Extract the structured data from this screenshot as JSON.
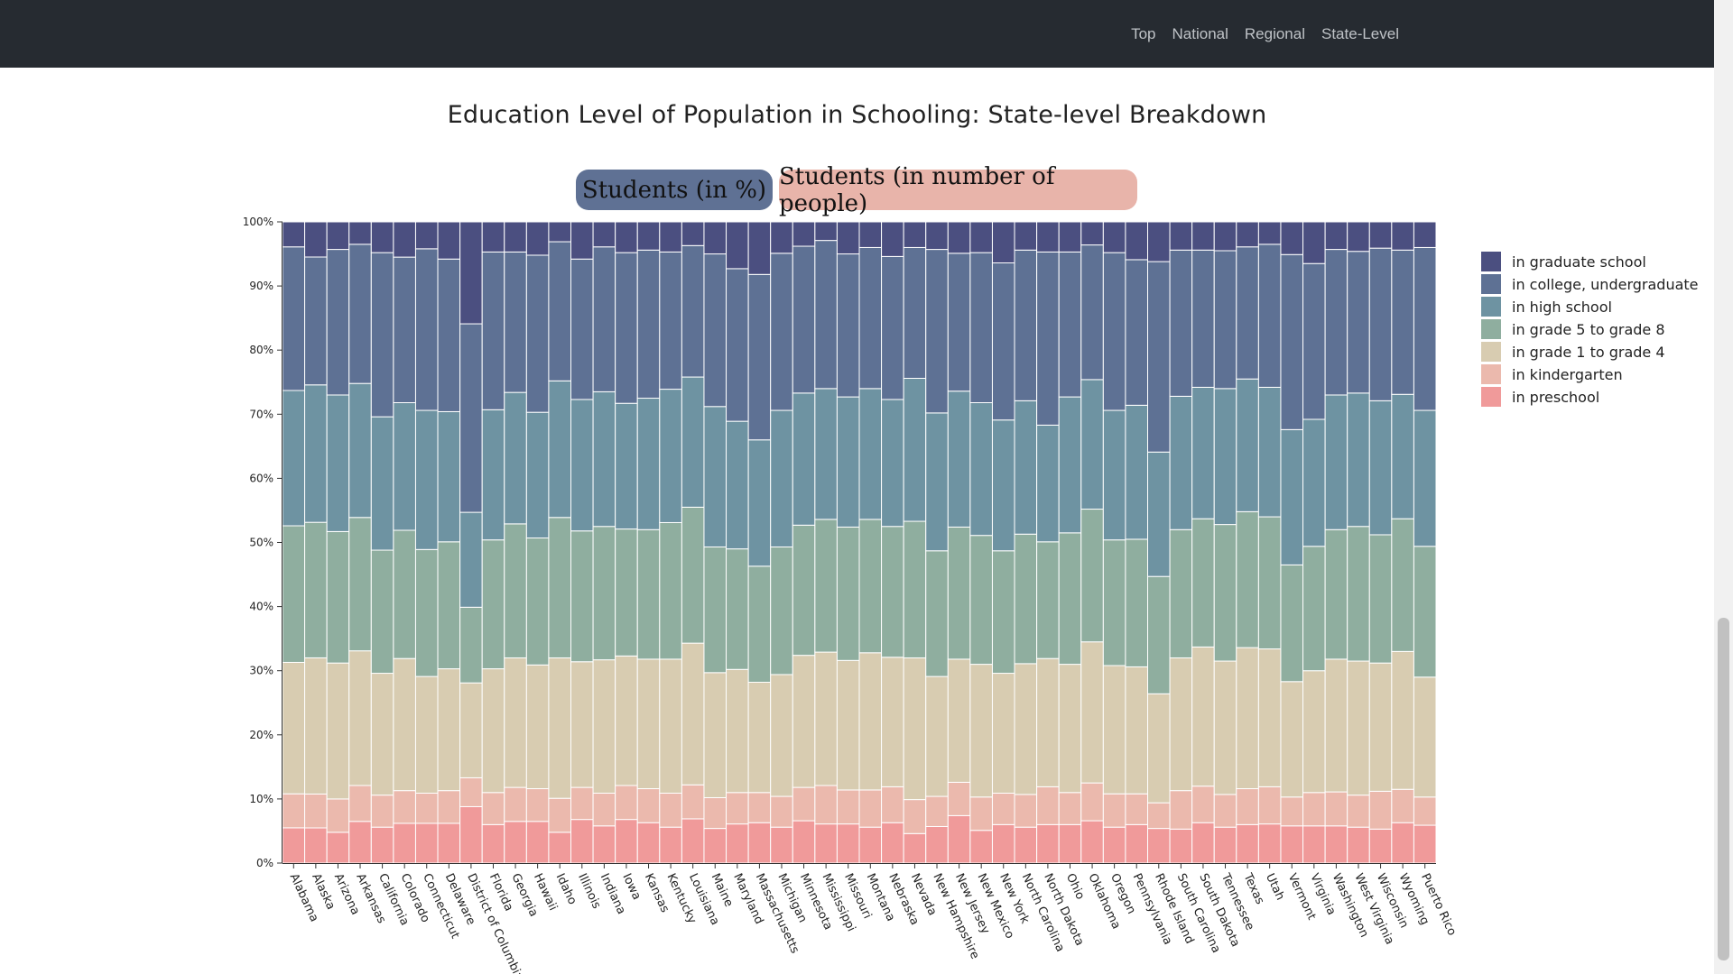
{
  "nav": {
    "links": [
      "Top",
      "National",
      "Regional",
      "State-Level"
    ]
  },
  "title": "Education Level of Population in Schooling: State-level Breakdown",
  "toggles": {
    "percent": "Students (in %)",
    "number": "Students (in number of people)"
  },
  "colors": {
    "navbar": "#262b31",
    "series": [
      "#f09a9a",
      "#ebb9ad",
      "#d8ccb1",
      "#8fae9f",
      "#6e93a2",
      "#5e7194",
      "#4b4f80"
    ]
  },
  "chart_data": {
    "type": "bar",
    "stacked": true,
    "normalized": true,
    "title": "Education Level of Population in Schooling: State-level Breakdown",
    "ylim": [
      0,
      100
    ],
    "yticks": [
      "0%",
      "10%",
      "20%",
      "30%",
      "40%",
      "50%",
      "60%",
      "70%",
      "80%",
      "90%",
      "100%"
    ],
    "legend_position": "right",
    "categories": [
      "Alabama",
      "Alaska",
      "Arizona",
      "Arkansas",
      "California",
      "Colorado",
      "Connecticut",
      "Delaware",
      "District of Columbia",
      "Florida",
      "Georgia",
      "Hawaii",
      "Idaho",
      "Illinois",
      "Indiana",
      "Iowa",
      "Kansas",
      "Kentucky",
      "Louisiana",
      "Maine",
      "Maryland",
      "Massachusetts",
      "Michigan",
      "Minnesota",
      "Mississippi",
      "Missouri",
      "Montana",
      "Nebraska",
      "Nevada",
      "New Hampshire",
      "New Jersey",
      "New Mexico",
      "New York",
      "North Carolina",
      "North Dakota",
      "Ohio",
      "Oklahoma",
      "Oregon",
      "Pennsylvania",
      "Rhode Island",
      "South Carolina",
      "South Dakota",
      "Tennessee",
      "Texas",
      "Utah",
      "Vermont",
      "Virginia",
      "Washington",
      "West Virginia",
      "Wisconsin",
      "Wyoming",
      "Puerto Rico"
    ],
    "series": [
      {
        "name": "in preschool",
        "values": [
          5.5,
          5.5,
          4.8,
          6.5,
          5.6,
          6.2,
          6.2,
          6.2,
          8.8,
          6.0,
          6.5,
          6.5,
          4.8,
          6.8,
          5.8,
          6.8,
          6.3,
          5.6,
          6.9,
          5.4,
          6.1,
          6.3,
          5.6,
          6.6,
          6.1,
          6.1,
          5.6,
          6.3,
          4.6,
          5.7,
          7.4,
          5.1,
          6.0,
          5.6,
          6.0,
          6.0,
          6.6,
          5.6,
          6.0,
          5.4,
          5.3,
          6.3,
          5.6,
          6.0,
          6.1,
          5.8,
          5.8,
          5.8,
          5.6,
          5.3,
          6.3,
          5.9
        ]
      },
      {
        "name": "in kindergarten",
        "values": [
          5.3,
          5.3,
          5.2,
          5.6,
          5.0,
          5.1,
          4.7,
          5.1,
          4.5,
          5.0,
          5.3,
          5.1,
          5.3,
          5.0,
          5.1,
          5.3,
          5.3,
          5.3,
          5.3,
          4.8,
          4.9,
          4.7,
          4.8,
          5.2,
          6.0,
          5.3,
          5.8,
          5.6,
          5.3,
          4.7,
          5.2,
          5.2,
          4.9,
          5.1,
          5.9,
          5.0,
          5.9,
          5.2,
          4.8,
          4.0,
          6.0,
          5.7,
          5.1,
          5.6,
          5.8,
          4.5,
          5.2,
          5.3,
          5.0,
          5.9,
          5.2,
          4.4
        ]
      },
      {
        "name": "in grade 1 to grade 4",
        "values": [
          20.5,
          21.3,
          21.2,
          21.0,
          19.0,
          20.6,
          18.2,
          19.0,
          14.8,
          19.3,
          20.2,
          19.3,
          21.9,
          19.6,
          20.8,
          20.2,
          20.2,
          20.9,
          22.1,
          19.5,
          19.2,
          17.2,
          19.0,
          20.6,
          20.8,
          20.2,
          21.4,
          20.2,
          22.1,
          18.7,
          19.2,
          20.7,
          18.7,
          20.4,
          20.0,
          20.0,
          22.0,
          20.0,
          19.8,
          17.0,
          20.7,
          21.7,
          20.8,
          22.0,
          21.5,
          18.0,
          19.0,
          20.7,
          20.9,
          20.0,
          21.5,
          18.7
        ]
      },
      {
        "name": "in grade 5 to grade 8",
        "values": [
          21.3,
          21.2,
          20.5,
          20.8,
          19.2,
          20.0,
          19.8,
          19.8,
          11.8,
          20.1,
          20.9,
          19.8,
          21.9,
          20.4,
          20.8,
          19.8,
          20.2,
          21.3,
          21.2,
          19.6,
          18.8,
          18.1,
          19.9,
          20.3,
          20.7,
          20.8,
          20.8,
          20.4,
          21.3,
          19.6,
          20.6,
          20.1,
          19.1,
          20.2,
          18.2,
          20.5,
          20.7,
          19.6,
          19.9,
          18.3,
          20.0,
          20.0,
          21.3,
          21.2,
          20.6,
          18.2,
          19.4,
          20.2,
          21.0,
          20.0,
          20.7,
          20.4
        ]
      },
      {
        "name": "in high school",
        "values": [
          21.1,
          21.5,
          21.3,
          20.9,
          20.8,
          19.9,
          21.7,
          20.3,
          14.8,
          20.3,
          20.5,
          19.6,
          21.3,
          20.5,
          21.0,
          19.6,
          20.5,
          20.8,
          20.3,
          21.9,
          19.9,
          19.7,
          21.3,
          20.6,
          20.4,
          20.3,
          20.4,
          19.8,
          22.3,
          21.5,
          21.2,
          20.7,
          20.4,
          20.8,
          18.2,
          21.2,
          20.2,
          20.2,
          20.9,
          19.4,
          20.8,
          20.5,
          21.2,
          20.7,
          20.2,
          21.1,
          19.8,
          21.0,
          20.8,
          20.9,
          19.4,
          21.2
        ]
      },
      {
        "name": "in college, undergraduate",
        "values": [
          22.4,
          20.0,
          22.7,
          21.7,
          25.6,
          22.7,
          25.2,
          23.8,
          29.4,
          24.6,
          21.9,
          24.5,
          21.7,
          21.9,
          22.6,
          23.5,
          23.1,
          21.4,
          20.5,
          23.8,
          23.8,
          25.8,
          24.5,
          22.9,
          23.1,
          22.3,
          22.0,
          22.3,
          20.4,
          25.5,
          21.5,
          23.4,
          24.5,
          23.5,
          27.0,
          22.6,
          21.0,
          24.6,
          22.7,
          29.7,
          22.8,
          21.4,
          21.5,
          20.6,
          22.3,
          27.3,
          24.3,
          22.7,
          22.1,
          23.8,
          22.5,
          25.4
        ]
      },
      {
        "name": "in graduate school",
        "values": [
          3.9,
          5.5,
          4.3,
          3.5,
          4.8,
          5.5,
          4.2,
          5.8,
          15.9,
          4.7,
          4.7,
          5.2,
          3.1,
          5.8,
          3.9,
          4.8,
          4.4,
          4.7,
          3.7,
          5.0,
          7.3,
          8.2,
          4.9,
          3.8,
          2.9,
          5.0,
          4.0,
          5.4,
          4.0,
          4.3,
          4.9,
          4.8,
          6.4,
          4.4,
          4.7,
          4.7,
          3.6,
          4.8,
          5.9,
          6.2,
          4.4,
          4.4,
          4.5,
          3.9,
          3.5,
          5.1,
          6.5,
          4.3,
          4.6,
          4.1,
          4.4,
          4.0
        ]
      }
    ]
  }
}
